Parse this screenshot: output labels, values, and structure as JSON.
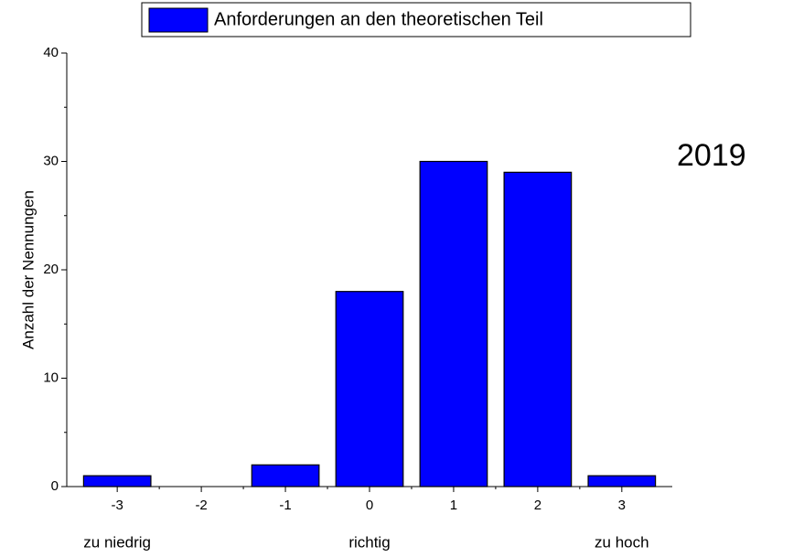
{
  "chart_data": {
    "type": "bar",
    "legend": "Anforderungen an den theoretischen Teil",
    "y_label": "Anzahl der Nennungen",
    "annotation": "2019",
    "x": [
      -3,
      -2,
      -1,
      0,
      1,
      2,
      3
    ],
    "values": [
      1,
      0,
      2,
      18,
      30,
      29,
      1
    ],
    "color": "#0000ff",
    "xlim": [
      -3.6,
      3.6
    ],
    "xticks": [
      -3,
      -2,
      -1,
      0,
      1,
      2,
      3
    ],
    "ylim": [
      0,
      40
    ],
    "yticks": [
      0,
      10,
      20,
      30,
      40
    ],
    "x_annotations": [
      {
        "x": -3,
        "text": "zu niedrig"
      },
      {
        "x": 0,
        "text": "richtig"
      },
      {
        "x": 3,
        "text": "zu hoch"
      }
    ]
  }
}
